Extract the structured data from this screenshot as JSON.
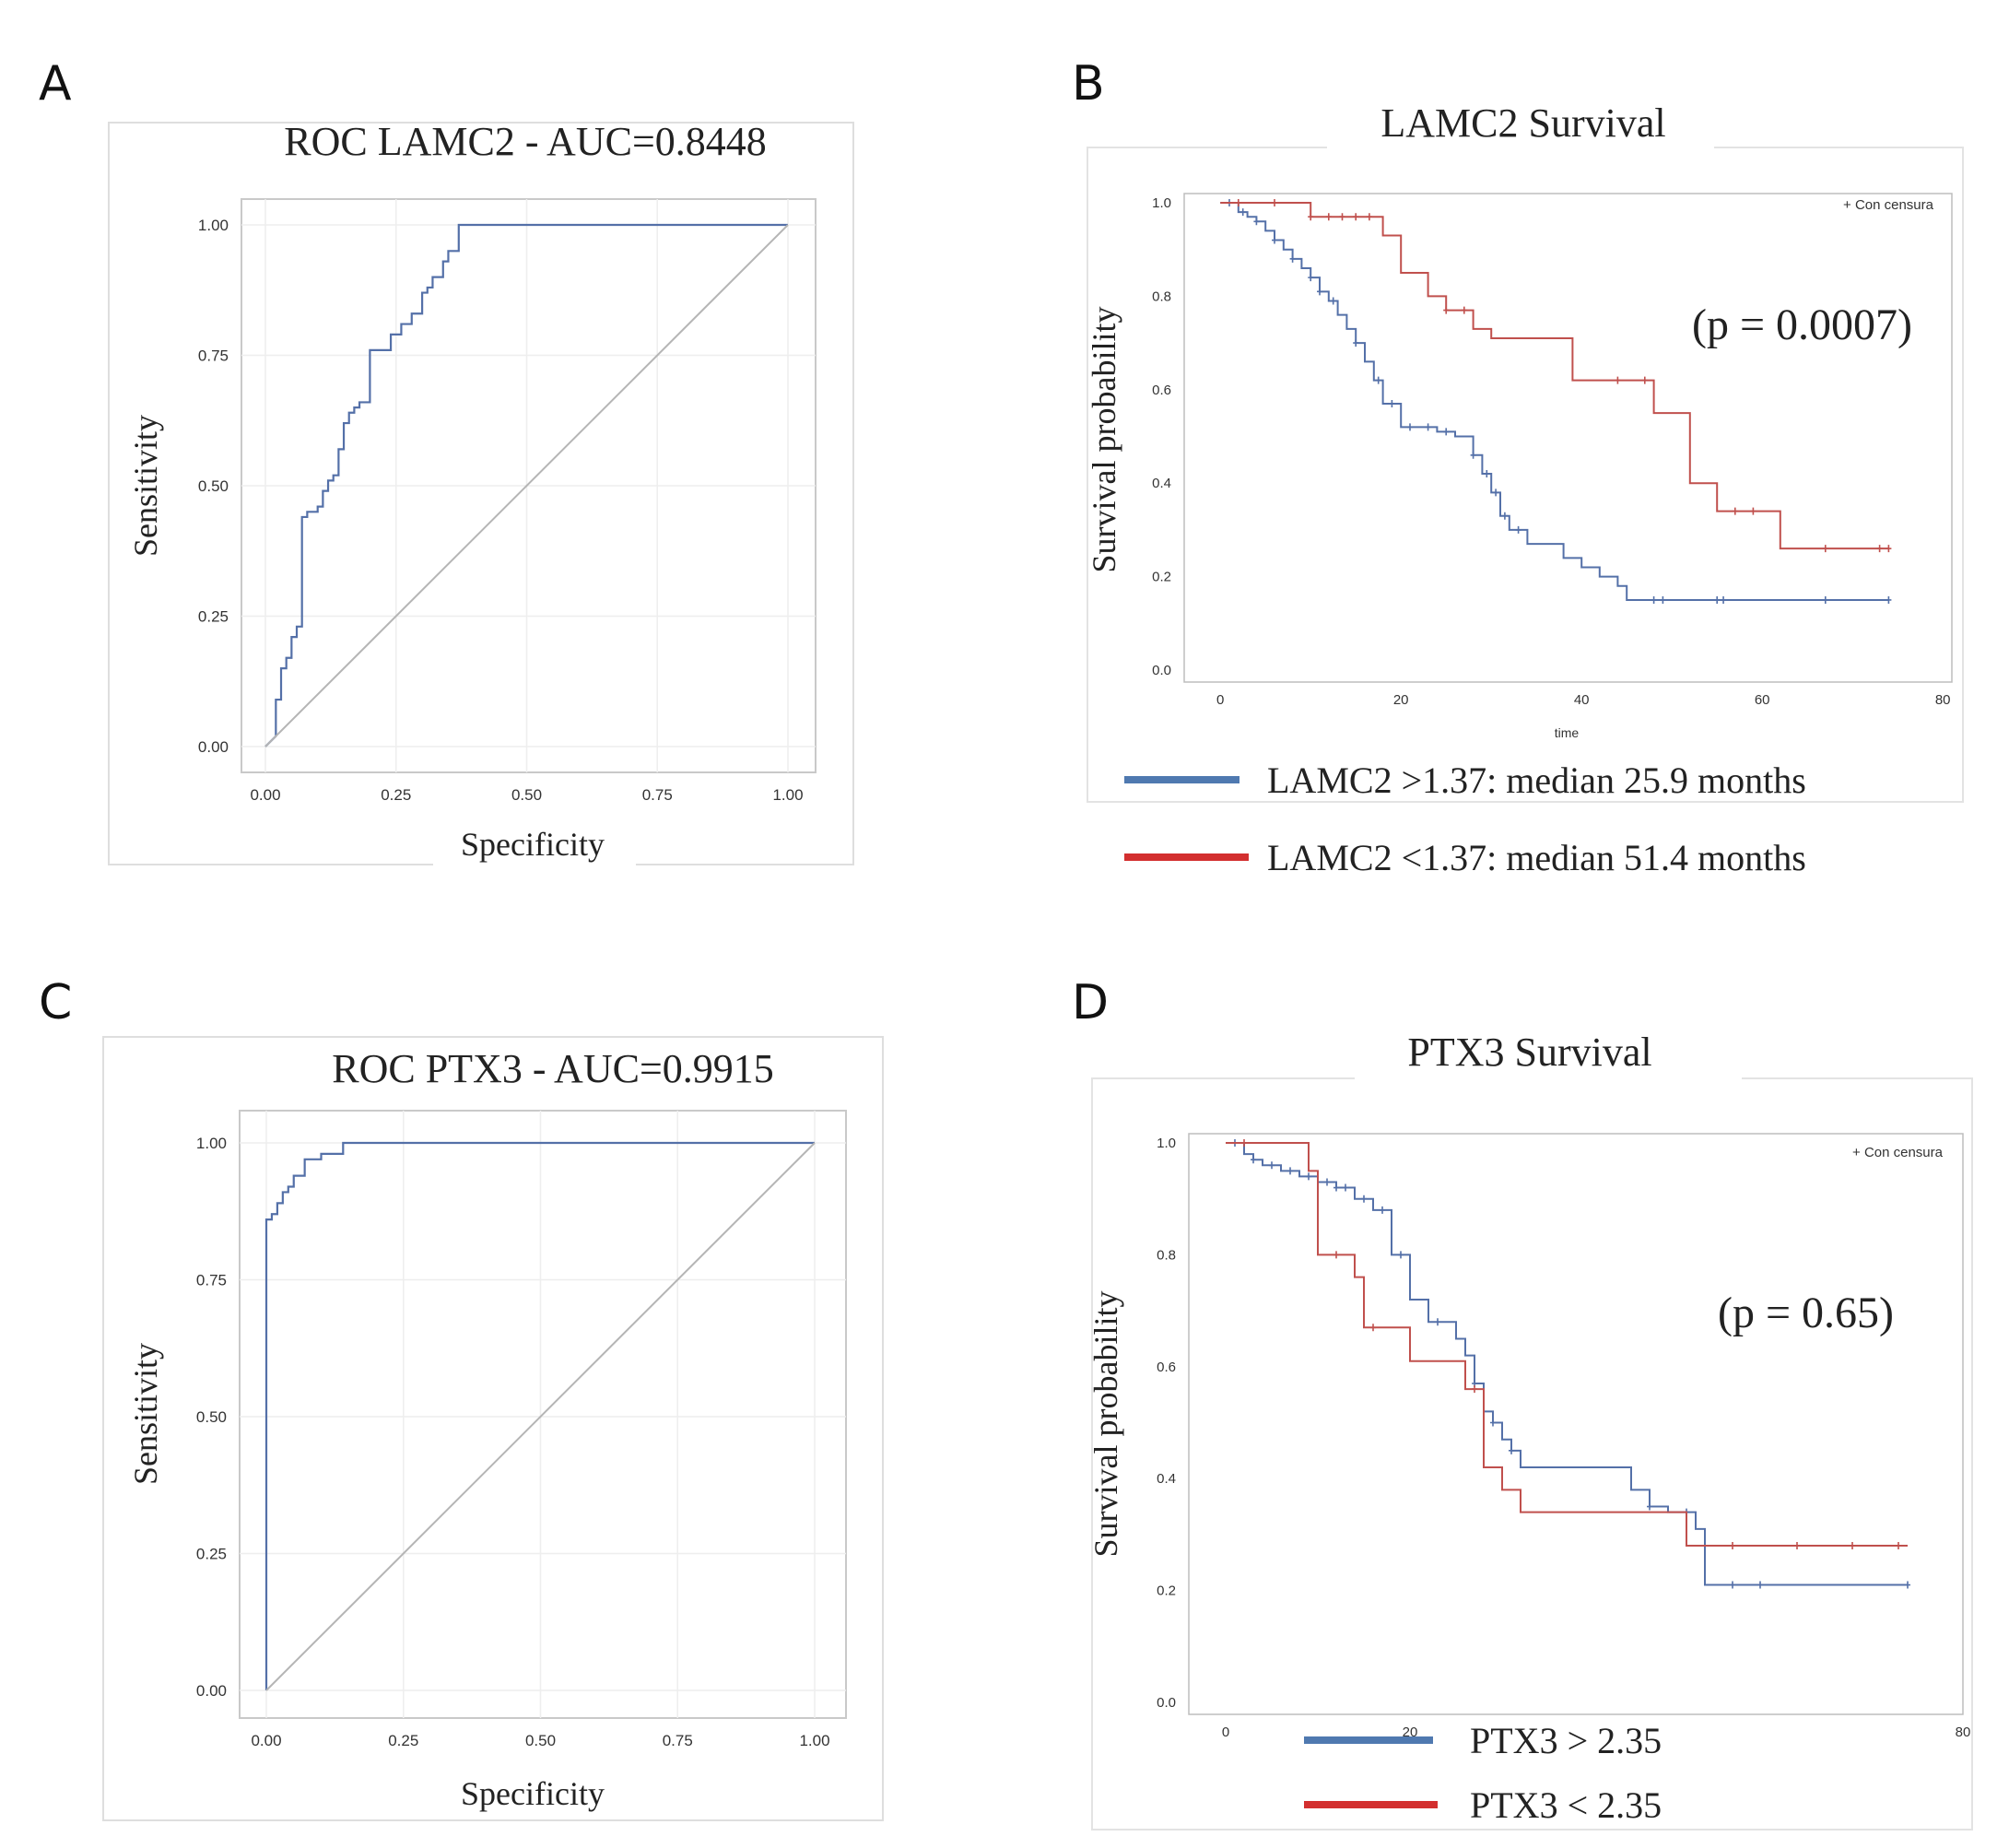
{
  "colors": {
    "blue": "#5470a8",
    "red": "#c0504d",
    "legend_blue": "#4f79b0",
    "legend_red": "#d32f2f",
    "diag": "#b5b5b5"
  },
  "panels": {
    "A": {
      "letter": "A"
    },
    "B": {
      "letter": "B"
    },
    "C": {
      "letter": "C"
    },
    "D": {
      "letter": "D"
    }
  },
  "chart_data": [
    {
      "id": "A",
      "type": "line",
      "title": "ROC LAMC2  - AUC=0.8448",
      "xlabel": "Specificity",
      "ylabel": "Sensitivity",
      "xlim": [
        0,
        1
      ],
      "ylim": [
        0,
        1
      ],
      "xticks": [
        "0.00",
        "0.25",
        "0.50",
        "0.75",
        "1.00"
      ],
      "yticks": [
        "0.00",
        "0.25",
        "0.50",
        "0.75",
        "1.00"
      ],
      "series": [
        {
          "name": "ROC",
          "color": "blue",
          "x": [
            0,
            0.02,
            0.02,
            0.03,
            0.03,
            0.04,
            0.04,
            0.05,
            0.05,
            0.06,
            0.06,
            0.07,
            0.07,
            0.08,
            0.08,
            0.1,
            0.1,
            0.11,
            0.11,
            0.12,
            0.12,
            0.13,
            0.13,
            0.14,
            0.14,
            0.15,
            0.15,
            0.16,
            0.16,
            0.17,
            0.17,
            0.18,
            0.18,
            0.2,
            0.2,
            0.24,
            0.24,
            0.26,
            0.26,
            0.28,
            0.28,
            0.3,
            0.3,
            0.31,
            0.31,
            0.32,
            0.32,
            0.34,
            0.34,
            0.35,
            0.35,
            0.37,
            0.37,
            1
          ],
          "y": [
            0,
            0.02,
            0.09,
            0.09,
            0.15,
            0.15,
            0.17,
            0.17,
            0.21,
            0.21,
            0.23,
            0.23,
            0.44,
            0.44,
            0.45,
            0.45,
            0.46,
            0.46,
            0.49,
            0.49,
            0.51,
            0.51,
            0.52,
            0.52,
            0.57,
            0.57,
            0.62,
            0.62,
            0.64,
            0.64,
            0.65,
            0.65,
            0.66,
            0.66,
            0.76,
            0.76,
            0.79,
            0.79,
            0.81,
            0.81,
            0.83,
            0.83,
            0.87,
            0.87,
            0.88,
            0.88,
            0.9,
            0.9,
            0.93,
            0.93,
            0.95,
            0.95,
            1,
            1
          ]
        },
        {
          "name": "Reference",
          "color": "diag",
          "x": [
            0,
            1
          ],
          "y": [
            0,
            1
          ]
        }
      ]
    },
    {
      "id": "B",
      "type": "line",
      "title": "LAMC2   Survival",
      "xlabel": "time",
      "ylabel": "Survival probability",
      "xlim": [
        -4,
        81
      ],
      "ylim": [
        0,
        1
      ],
      "xticks": [
        "0",
        "20",
        "40",
        "60",
        "80"
      ],
      "xtick_values": [
        0,
        20,
        40,
        60,
        80
      ],
      "yticks": [
        "0.0",
        "0.2",
        "0.4",
        "0.6",
        "0.8",
        "1.0"
      ],
      "ytick_values": [
        0,
        0.2,
        0.4,
        0.6,
        0.8,
        1
      ],
      "censor_label": "+ Con censura",
      "p_value": "(p = 0.0007)",
      "legend": [
        "LAMC2  >1.37: median 25.9 months",
        "LAMC2  <1.37: median 51.4 months"
      ],
      "series": [
        {
          "name": "LAMC2 >1.37",
          "color": "blue",
          "legend_color": "legend_blue",
          "x": [
            0,
            2,
            3,
            4,
            5,
            6,
            7,
            8,
            9,
            10,
            11,
            12,
            13,
            14,
            15,
            16,
            17,
            18,
            20,
            22,
            24,
            26,
            28,
            29,
            30,
            31,
            32,
            34,
            36,
            38,
            40,
            42,
            44,
            45,
            48,
            50,
            55,
            60,
            65,
            70,
            74
          ],
          "y": [
            1,
            0.98,
            0.97,
            0.96,
            0.94,
            0.92,
            0.9,
            0.88,
            0.86,
            0.84,
            0.81,
            0.79,
            0.76,
            0.73,
            0.7,
            0.66,
            0.62,
            0.57,
            0.52,
            0.52,
            0.51,
            0.5,
            0.46,
            0.42,
            0.38,
            0.33,
            0.3,
            0.27,
            0.27,
            0.24,
            0.22,
            0.2,
            0.18,
            0.15,
            0.15,
            0.15,
            0.15,
            0.15,
            0.15,
            0.15,
            0.15
          ],
          "censor_x": [
            1,
            2.5,
            4,
            6,
            8,
            10,
            11,
            12.5,
            15,
            17.5,
            19,
            21,
            23,
            25,
            28,
            29.5,
            30.5,
            31.5,
            33,
            48,
            49,
            55,
            55.7,
            67,
            74
          ]
        },
        {
          "name": "LAMC2 <1.37",
          "color": "red",
          "legend_color": "legend_red",
          "x": [
            0,
            5,
            10,
            11,
            15,
            18,
            20,
            22,
            23,
            25,
            28,
            30,
            33,
            35,
            39,
            45,
            47,
            48,
            52,
            55,
            60,
            62,
            68,
            74
          ],
          "y": [
            1,
            1,
            0.97,
            0.97,
            0.97,
            0.93,
            0.85,
            0.85,
            0.8,
            0.77,
            0.73,
            0.71,
            0.71,
            0.71,
            0.62,
            0.62,
            0.62,
            0.55,
            0.4,
            0.34,
            0.34,
            0.26,
            0.26,
            0.26
          ],
          "censor_x": [
            2,
            6,
            10,
            12,
            13.5,
            15,
            16.5,
            25,
            27,
            44,
            47,
            57,
            59,
            67,
            73,
            74
          ]
        }
      ]
    },
    {
      "id": "C",
      "type": "line",
      "title": "ROC PTX3  - AUC=0.9915",
      "xlabel": "Specificity",
      "ylabel": "Sensitivity",
      "xlim": [
        0,
        1
      ],
      "ylim": [
        0,
        1
      ],
      "xticks": [
        "0.00",
        "0.25",
        "0.50",
        "0.75",
        "1.00"
      ],
      "yticks": [
        "0.00",
        "0.25",
        "0.50",
        "0.75",
        "1.00"
      ],
      "series": [
        {
          "name": "ROC",
          "color": "blue",
          "x": [
            0,
            0,
            0.01,
            0.01,
            0.02,
            0.02,
            0.03,
            0.03,
            0.04,
            0.04,
            0.05,
            0.05,
            0.07,
            0.07,
            0.1,
            0.1,
            0.14,
            0.14,
            1
          ],
          "y": [
            0,
            0.86,
            0.86,
            0.87,
            0.87,
            0.89,
            0.89,
            0.91,
            0.91,
            0.92,
            0.92,
            0.94,
            0.94,
            0.97,
            0.97,
            0.98,
            0.98,
            1,
            1
          ]
        },
        {
          "name": "Reference",
          "color": "diag",
          "x": [
            0,
            1
          ],
          "y": [
            0,
            1
          ]
        }
      ]
    },
    {
      "id": "D",
      "type": "line",
      "title": "PTX3 Survival",
      "xlabel": "",
      "ylabel": "Survival probability",
      "xlim": [
        -4,
        80
      ],
      "ylim": [
        0,
        1
      ],
      "xticks": [
        "0",
        "20",
        "80"
      ],
      "xtick_values": [
        0,
        20,
        80
      ],
      "yticks": [
        "0.0",
        "0.2",
        "0.4",
        "0.6",
        "0.8",
        "1.0"
      ],
      "ytick_values": [
        0,
        0.2,
        0.4,
        0.6,
        0.8,
        1
      ],
      "censor_label": "+ Con censura",
      "p_value": "(p = 0.65)",
      "legend": [
        "PTX3 > 2.35",
        "PTX3 < 2.35"
      ],
      "series": [
        {
          "name": "PTX3 > 2.35",
          "color": "blue",
          "legend_color": "legend_blue",
          "x": [
            0,
            2,
            3,
            4,
            6,
            8,
            10,
            12,
            14,
            16,
            18,
            20,
            22,
            24,
            25,
            26,
            27,
            28,
            29,
            30,
            31,
            32,
            38,
            44,
            46,
            48,
            51,
            52,
            55,
            60,
            65,
            70,
            74
          ],
          "y": [
            1,
            0.98,
            0.97,
            0.96,
            0.95,
            0.94,
            0.93,
            0.92,
            0.9,
            0.88,
            0.8,
            0.72,
            0.68,
            0.68,
            0.65,
            0.62,
            0.57,
            0.52,
            0.5,
            0.47,
            0.45,
            0.42,
            0.42,
            0.38,
            0.35,
            0.34,
            0.31,
            0.21,
            0.21,
            0.21,
            0.21,
            0.21,
            0.21
          ],
          "censor_x": [
            1,
            3,
            5,
            7,
            9,
            11,
            12,
            13,
            15,
            17,
            19,
            23,
            27,
            29,
            31,
            46,
            50,
            55,
            58,
            74
          ]
        },
        {
          "name": "PTX3 < 2.35",
          "color": "red",
          "legend_color": "legend_red",
          "x": [
            0,
            5,
            9,
            10,
            14,
            15,
            17,
            20,
            26,
            28,
            30,
            32,
            40,
            46,
            50,
            55,
            60,
            70,
            74
          ],
          "y": [
            1,
            1,
            0.95,
            0.8,
            0.76,
            0.67,
            0.67,
            0.61,
            0.56,
            0.42,
            0.38,
            0.34,
            0.34,
            0.34,
            0.28,
            0.28,
            0.28,
            0.28,
            0.28
          ],
          "censor_x": [
            2,
            12,
            16,
            27,
            55,
            62,
            68,
            73
          ]
        }
      ]
    }
  ]
}
